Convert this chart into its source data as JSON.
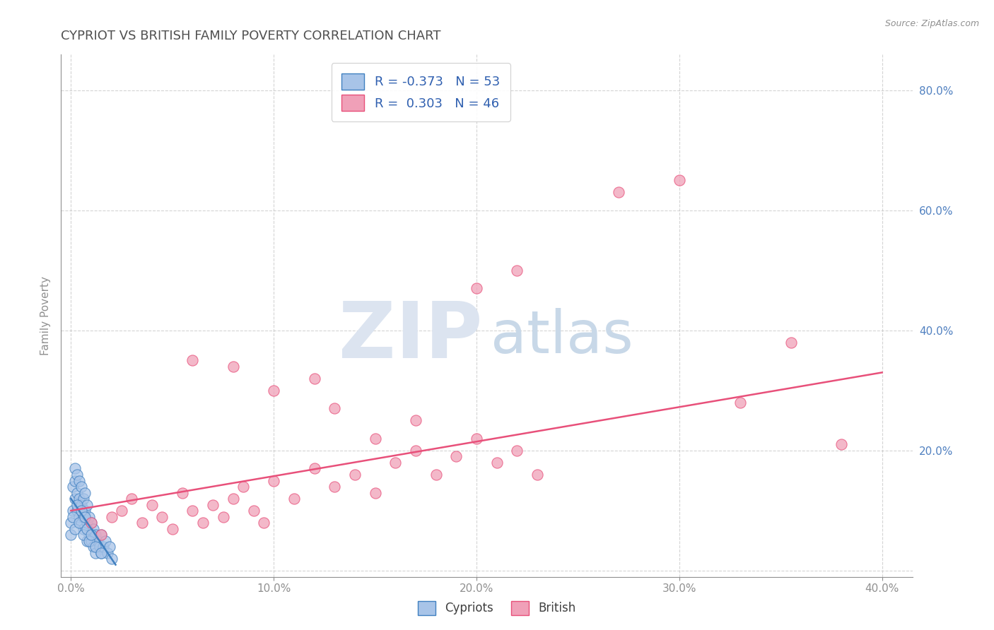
{
  "title": "CYPRIOT VS BRITISH FAMILY POVERTY CORRELATION CHART",
  "source": "Source: ZipAtlas.com",
  "ylabel_text": "Family Poverty",
  "x_ticks": [
    0.0,
    0.1,
    0.2,
    0.3,
    0.4
  ],
  "x_tick_labels": [
    "0.0%",
    "10.0%",
    "20.0%",
    "30.0%",
    "40.0%"
  ],
  "y_ticks": [
    0.0,
    0.2,
    0.4,
    0.6,
    0.8
  ],
  "y_tick_labels": [
    "",
    "20.0%",
    "40.0%",
    "60.0%",
    "80.0%"
  ],
  "xlim": [
    -0.005,
    0.415
  ],
  "ylim": [
    -0.01,
    0.86
  ],
  "cypriot_R": -0.373,
  "cypriot_N": 53,
  "british_R": 0.303,
  "british_N": 46,
  "cypriot_color": "#a8c4e8",
  "british_color": "#f0a0b8",
  "cypriot_line_color": "#4080c0",
  "british_line_color": "#e8507a",
  "background_color": "#ffffff",
  "grid_color": "#b8b8b8",
  "watermark_zip_color": "#dce4f0",
  "watermark_atlas_color": "#c8d8e8",
  "title_color": "#505050",
  "legend_R_color": "#3060b0",
  "axis_color": "#909090",
  "tick_color_y": "#5080c0",
  "cypriot_x": [
    0.0,
    0.001,
    0.001,
    0.002,
    0.002,
    0.002,
    0.003,
    0.003,
    0.003,
    0.004,
    0.004,
    0.004,
    0.005,
    0.005,
    0.005,
    0.006,
    0.006,
    0.006,
    0.007,
    0.007,
    0.008,
    0.008,
    0.008,
    0.009,
    0.009,
    0.01,
    0.01,
    0.011,
    0.011,
    0.012,
    0.012,
    0.013,
    0.014,
    0.015,
    0.015,
    0.016,
    0.017,
    0.018,
    0.019,
    0.02,
    0.0,
    0.001,
    0.002,
    0.003,
    0.004,
    0.005,
    0.006,
    0.007,
    0.008,
    0.009,
    0.01,
    0.012,
    0.015
  ],
  "cypriot_y": [
    0.08,
    0.1,
    0.14,
    0.12,
    0.15,
    0.17,
    0.1,
    0.13,
    0.16,
    0.09,
    0.12,
    0.15,
    0.08,
    0.11,
    0.14,
    0.09,
    0.12,
    0.07,
    0.1,
    0.13,
    0.08,
    0.11,
    0.05,
    0.09,
    0.06,
    0.08,
    0.05,
    0.07,
    0.04,
    0.06,
    0.03,
    0.05,
    0.04,
    0.06,
    0.03,
    0.04,
    0.05,
    0.03,
    0.04,
    0.02,
    0.06,
    0.09,
    0.07,
    0.11,
    0.08,
    0.1,
    0.06,
    0.09,
    0.07,
    0.05,
    0.06,
    0.04,
    0.03
  ],
  "british_x": [
    0.01,
    0.015,
    0.02,
    0.025,
    0.03,
    0.035,
    0.04,
    0.045,
    0.05,
    0.055,
    0.06,
    0.065,
    0.07,
    0.075,
    0.08,
    0.085,
    0.09,
    0.095,
    0.1,
    0.11,
    0.12,
    0.13,
    0.14,
    0.15,
    0.16,
    0.17,
    0.18,
    0.2,
    0.21,
    0.22,
    0.23,
    0.13,
    0.15,
    0.17,
    0.19,
    0.06,
    0.08,
    0.1,
    0.12,
    0.2,
    0.22,
    0.27,
    0.3,
    0.33,
    0.355,
    0.38
  ],
  "british_y": [
    0.08,
    0.06,
    0.09,
    0.1,
    0.12,
    0.08,
    0.11,
    0.09,
    0.07,
    0.13,
    0.1,
    0.08,
    0.11,
    0.09,
    0.12,
    0.14,
    0.1,
    0.08,
    0.15,
    0.12,
    0.17,
    0.14,
    0.16,
    0.13,
    0.18,
    0.2,
    0.16,
    0.22,
    0.18,
    0.2,
    0.16,
    0.27,
    0.22,
    0.25,
    0.19,
    0.35,
    0.34,
    0.3,
    0.32,
    0.47,
    0.5,
    0.63,
    0.65,
    0.28,
    0.38,
    0.21
  ],
  "cypriot_line_x": [
    0.0,
    0.022
  ],
  "cypriot_line_y": [
    0.12,
    0.01
  ],
  "british_line_x": [
    0.0,
    0.4
  ],
  "british_line_y": [
    0.1,
    0.33
  ]
}
